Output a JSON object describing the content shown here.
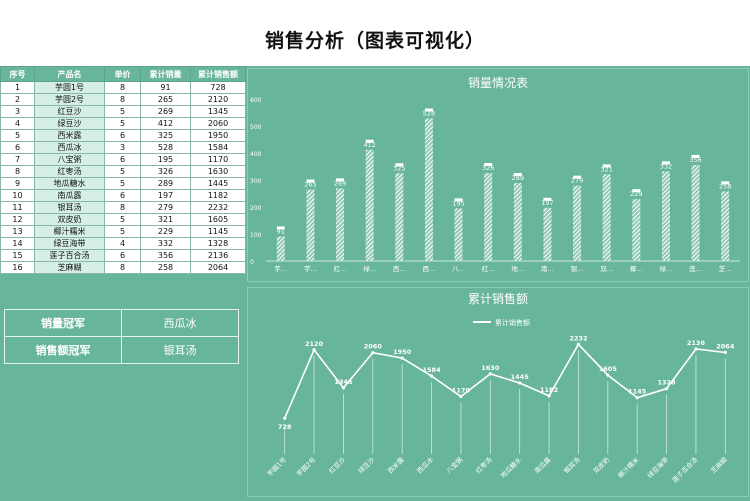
{
  "page": {
    "title": "销售分析（图表可视化）"
  },
  "table": {
    "headers": [
      "序号",
      "产品名",
      "单价",
      "累计销量",
      "累计销售额"
    ],
    "rows": [
      [
        "1",
        "芋圆1号",
        "8",
        "91",
        "728"
      ],
      [
        "2",
        "芋圆2号",
        "8",
        "265",
        "2120"
      ],
      [
        "3",
        "红豆沙",
        "5",
        "269",
        "1345"
      ],
      [
        "4",
        "绿豆沙",
        "5",
        "412",
        "2060"
      ],
      [
        "5",
        "西米露",
        "6",
        "325",
        "1950"
      ],
      [
        "6",
        "西瓜冰",
        "3",
        "528",
        "1584"
      ],
      [
        "7",
        "八宝粥",
        "6",
        "195",
        "1170"
      ],
      [
        "8",
        "红枣汤",
        "5",
        "326",
        "1630"
      ],
      [
        "9",
        "地瓜糖水",
        "5",
        "289",
        "1445"
      ],
      [
        "10",
        "南瓜露",
        "6",
        "197",
        "1182"
      ],
      [
        "11",
        "银耳汤",
        "8",
        "279",
        "2232"
      ],
      [
        "12",
        "双皮奶",
        "5",
        "321",
        "1605"
      ],
      [
        "13",
        "椰汁糯米",
        "5",
        "229",
        "1145"
      ],
      [
        "14",
        "绿豆海带",
        "4",
        "332",
        "1328"
      ],
      [
        "15",
        "莲子百合汤",
        "6",
        "356",
        "2136"
      ],
      [
        "16",
        "芝麻糊",
        "8",
        "258",
        "2064"
      ]
    ]
  },
  "summary": {
    "volume_champion_label": "销量冠军",
    "volume_champion_value": "西瓜冰",
    "sales_champion_label": "销售额冠军",
    "sales_champion_value": "银耳汤"
  },
  "chart_data": [
    {
      "type": "bar",
      "title": "销量情况表",
      "categories": [
        "芋…",
        "芋…",
        "红…",
        "绿…",
        "西…",
        "西…",
        "八…",
        "红…",
        "地…",
        "南…",
        "银…",
        "双…",
        "椰…",
        "绿…",
        "莲…",
        "芝…"
      ],
      "values": [
        91,
        265,
        269,
        412,
        325,
        528,
        195,
        326,
        289,
        197,
        279,
        321,
        229,
        332,
        356,
        258
      ],
      "ylim": [
        0,
        600
      ],
      "yticks": [
        0,
        100,
        200,
        300,
        400,
        500,
        600
      ],
      "grid": false,
      "bar_style": "hatched-white"
    },
    {
      "type": "line",
      "title": "累计销售额",
      "legend": "累计销售额",
      "legend_position": "top",
      "categories": [
        "芋圆1号",
        "芋圆2号",
        "红豆沙",
        "绿豆沙",
        "西米露",
        "西瓜冰",
        "八宝粥",
        "红枣汤",
        "地瓜糖水",
        "南瓜露",
        "银耳汤",
        "双皮奶",
        "椰汁糯米",
        "绿豆海带",
        "莲子百合汤",
        "芝麻糊"
      ],
      "values": [
        728,
        2120,
        1345,
        2060,
        1950,
        1584,
        1170,
        1630,
        1445,
        1182,
        2232,
        1605,
        1145,
        1328,
        2136,
        2064
      ],
      "ylim": [
        0,
        2400
      ],
      "grid": false,
      "drop_lines": true
    }
  ],
  "colors": {
    "background": "#67b59b",
    "panel_border": "#8ccdb5",
    "mark": "#ffffff",
    "label": "#e8f5ef"
  }
}
